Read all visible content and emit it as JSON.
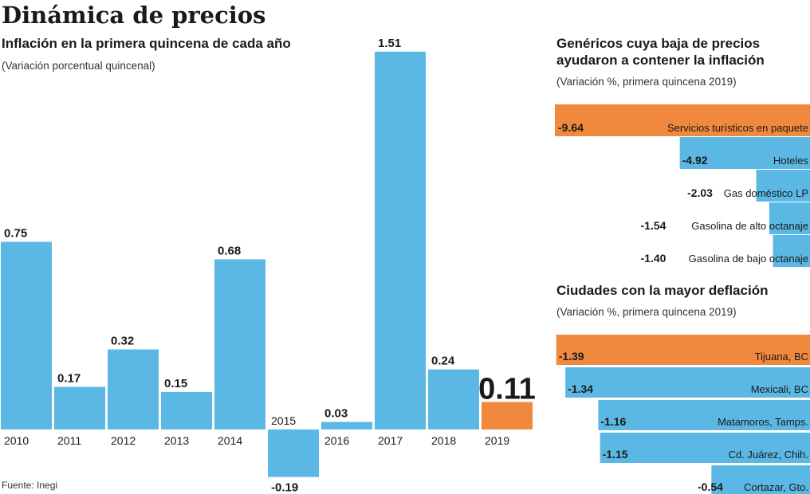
{
  "title": "Dinámica de precios",
  "source": "Fuente: Inegi",
  "colors": {
    "bar": "#5bb8e4",
    "highlight": "#f0883e",
    "text": "#1a1a1a"
  },
  "chart_data": [
    {
      "type": "bar",
      "title": "Inflación en la primera quincena de cada año",
      "subtitle": "(Variación porcentual quincenal)",
      "categories": [
        "2010",
        "2011",
        "2012",
        "2013",
        "2014",
        "2015",
        "2016",
        "2017",
        "2018",
        "2019"
      ],
      "values": [
        0.75,
        0.17,
        0.32,
        0.15,
        0.68,
        -0.19,
        0.03,
        1.51,
        0.24,
        0.11
      ],
      "value_labels": [
        "0.75",
        "0.17",
        "0.32",
        "0.15",
        "0.68",
        "-0.19",
        "0.03",
        "1.51",
        "0.24",
        "0.11"
      ],
      "highlight_index": 9,
      "ylim": [
        -0.25,
        1.55
      ],
      "grid": false
    },
    {
      "type": "bar",
      "orientation": "horizontal",
      "title": "Genéricos cuya baja de precios ayudaron a contener la inflación",
      "title_lines": [
        "Genéricos cuya baja de precios",
        "ayudaron a contener la inflación"
      ],
      "subtitle": "(Variación %, primera quincena 2019)",
      "categories": [
        "Servicios turísticos en paquete",
        "Hoteles",
        "Gas doméstico LP",
        "Gasolina de alto octanaje",
        "Gasolina de bajo octanaje"
      ],
      "values": [
        -9.64,
        -4.92,
        -2.03,
        -1.54,
        -1.4
      ],
      "value_labels": [
        "-9.64",
        "-4.92",
        "-2.03",
        "-1.54",
        "-1.40"
      ],
      "highlight_index": 0,
      "xlim": [
        -9.64,
        0
      ]
    },
    {
      "type": "bar",
      "orientation": "horizontal",
      "title": "Ciudades con la mayor deflación",
      "subtitle": "(Variación %, primera quincena 2019)",
      "categories": [
        "Tijuana, BC",
        "Mexicali, BC",
        "Matamoros, Tamps.",
        "Cd. Juárez, Chih.",
        "Cortazar, Gto."
      ],
      "values": [
        -1.39,
        -1.34,
        -1.16,
        -1.15,
        -0.54
      ],
      "value_labels": [
        "-1.39",
        "-1.34",
        "-1.16",
        "-1.15",
        "-0.54"
      ],
      "highlight_index": 0,
      "xlim": [
        -1.39,
        0
      ]
    }
  ]
}
